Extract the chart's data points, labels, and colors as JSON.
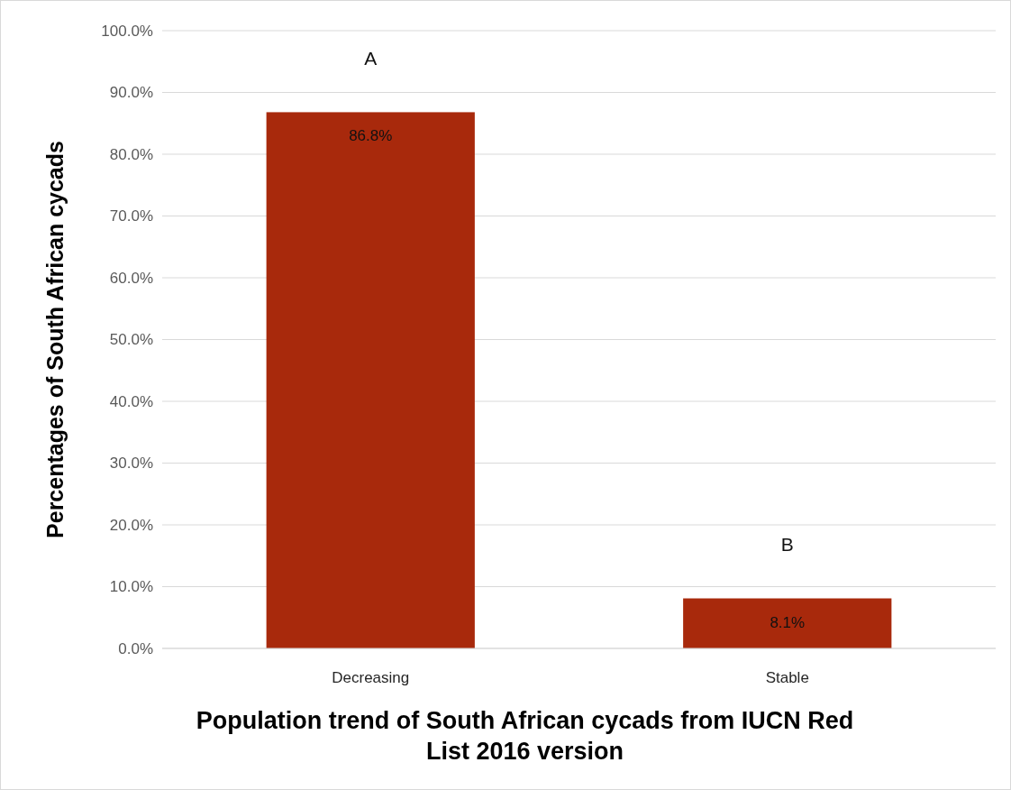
{
  "chart_data": {
    "type": "bar",
    "xlabel": "Population trend of South African cycads from IUCN Red List 2016 version",
    "ylabel": "Percentages of South African cycads",
    "categories": [
      "Decreasing",
      "Stable"
    ],
    "values": [
      86.8,
      8.1
    ],
    "value_labels": [
      "86.8%",
      "8.1%"
    ],
    "color": "#a8290c",
    "ylim": [
      0,
      100
    ],
    "yticks": [
      {
        "value": 0,
        "label": "0.0%"
      },
      {
        "value": 10,
        "label": "10.0%"
      },
      {
        "value": 20,
        "label": "20.0%"
      },
      {
        "value": 30,
        "label": "30.0%"
      },
      {
        "value": 40,
        "label": "40.0%"
      },
      {
        "value": 50,
        "label": "50.0%"
      },
      {
        "value": 60,
        "label": "60.0%"
      },
      {
        "value": 70,
        "label": "70.0%"
      },
      {
        "value": 80,
        "label": "80.0%"
      },
      {
        "value": 90,
        "label": "90.0%"
      },
      {
        "value": 100,
        "label": "100.0%"
      }
    ],
    "grid": "y",
    "annotations": [
      "A",
      "B"
    ]
  }
}
